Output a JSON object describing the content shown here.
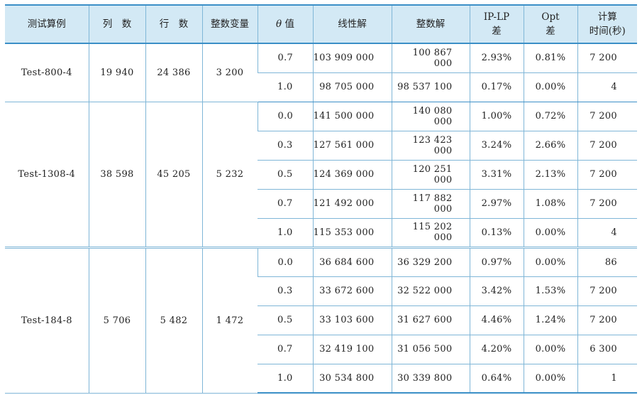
{
  "headers": {
    "case": "测试算例",
    "cols": "列　数",
    "rows": "行　数",
    "int_vars": "整数变量",
    "theta_symbol": "θ",
    "theta_suffix": " 值",
    "lp_solution": "线性解",
    "ip_solution": "整数解",
    "ip_lp_gap_line1": "IP-LP",
    "ip_lp_gap_line2": "差",
    "opt_gap_line1": "Opt",
    "opt_gap_line2": "差",
    "time_line1": "计算",
    "time_line2": "时间(秒)"
  },
  "groups": [
    {
      "case": "Test-800-4",
      "cols": "19 940",
      "rows": "24 386",
      "int_vars": "3 200",
      "rows_data": [
        {
          "theta": "0.7",
          "lp": "103 909 000",
          "ip": "100 867 000",
          "ip_lp": "2.93%",
          "opt": "0.81%",
          "time": "7 200"
        },
        {
          "theta": "1.0",
          "lp": "98 705 000",
          "ip": "98 537 100",
          "ip_lp": "0.17%",
          "opt": "0.00%",
          "time": "4"
        }
      ]
    },
    {
      "case": "Test-1308-4",
      "cols": "38 598",
      "rows": "45 205",
      "int_vars": "5 232",
      "rows_data": [
        {
          "theta": "0.0",
          "lp": "141 500 000",
          "ip": "140 080 000",
          "ip_lp": "1.00%",
          "opt": "0.72%",
          "time": "7 200"
        },
        {
          "theta": "0.3",
          "lp": "127 561 000",
          "ip": "123 423 000",
          "ip_lp": "3.24%",
          "opt": "2.66%",
          "time": "7 200"
        },
        {
          "theta": "0.5",
          "lp": "124 369 000",
          "ip": "120 251 000",
          "ip_lp": "3.31%",
          "opt": "2.13%",
          "time": "7 200"
        },
        {
          "theta": "0.7",
          "lp": "121 492 000",
          "ip": "117 882 000",
          "ip_lp": "2.97%",
          "opt": "1.08%",
          "time": "7 200"
        },
        {
          "theta": "1.0",
          "lp": "115 353 000",
          "ip": "115 202 000",
          "ip_lp": "0.13%",
          "opt": "0.00%",
          "time": "4"
        }
      ]
    },
    {
      "case": "Test-184-8",
      "cols": "5 706",
      "rows": "5 482",
      "int_vars": "1 472",
      "rows_data": [
        {
          "theta": "0.0",
          "lp": "36 684 600",
          "ip": "36 329 200",
          "ip_lp": "0.97%",
          "opt": "0.00%",
          "time": "86"
        },
        {
          "theta": "0.3",
          "lp": "33 672 600",
          "ip": "32 522 000",
          "ip_lp": "3.42%",
          "opt": "1.53%",
          "time": "7 200"
        },
        {
          "theta": "0.5",
          "lp": "33 103 600",
          "ip": "31 627 600",
          "ip_lp": "4.46%",
          "opt": "1.24%",
          "time": "7 200"
        },
        {
          "theta": "0.7",
          "lp": "32 419 100",
          "ip": "31 056 500",
          "ip_lp": "4.20%",
          "opt": "0.00%",
          "time": "6 300"
        },
        {
          "theta": "1.0",
          "lp": "30 534 800",
          "ip": "30 339 800",
          "ip_lp": "0.64%",
          "opt": "0.00%",
          "time": "1"
        }
      ]
    }
  ]
}
